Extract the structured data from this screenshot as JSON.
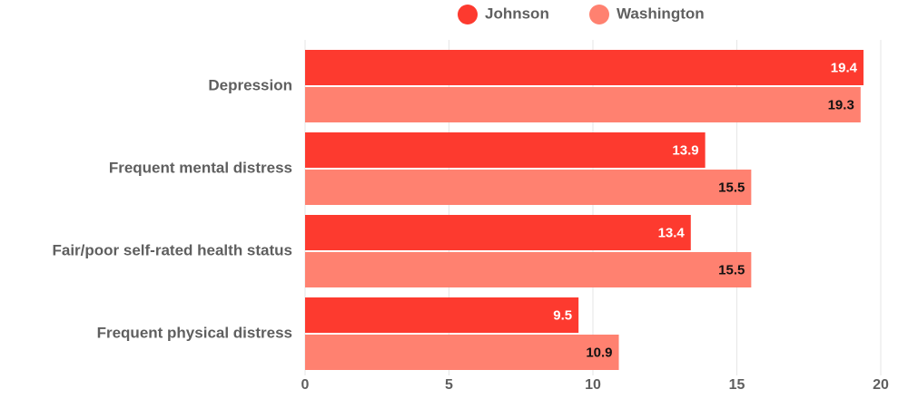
{
  "chart_data": {
    "type": "hbar",
    "categories": [
      "Depression",
      "Frequent mental distress",
      "Fair/poor self-rated health status",
      "Frequent physical distress"
    ],
    "series": [
      {
        "name": "Johnson",
        "color": "#fd3a2f",
        "label_color": "#ffffff",
        "values": [
          19.4,
          13.9,
          13.4,
          9.5
        ]
      },
      {
        "name": "Washington",
        "color": "#ff8170",
        "label_color": "#111111",
        "values": [
          19.3,
          15.5,
          15.5,
          10.9
        ]
      }
    ],
    "xlim": [
      0,
      20
    ],
    "xticks": [
      0,
      5,
      10,
      15,
      20
    ],
    "grid": true
  }
}
